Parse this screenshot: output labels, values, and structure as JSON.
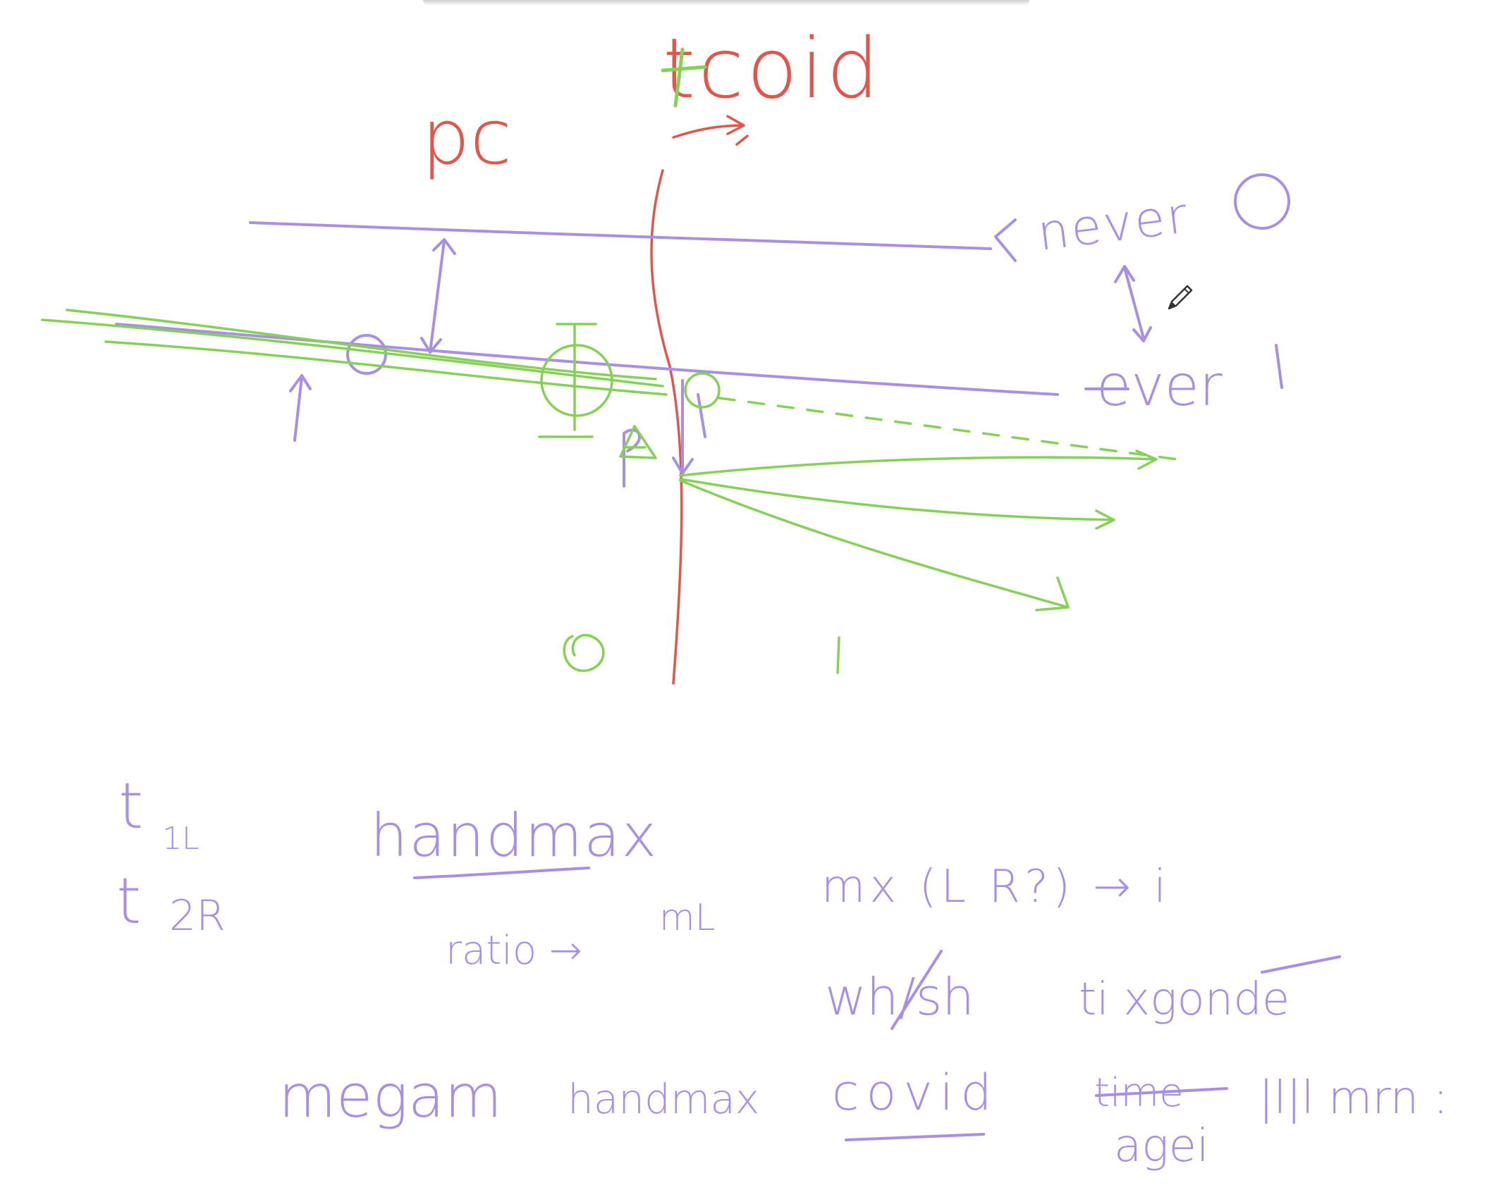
{
  "colors": {
    "red": "#e0564a",
    "green": "#85d156",
    "purple": "#a98ee6"
  },
  "annotations": {
    "top_label": "tcoid",
    "left_label": "pc",
    "never": "never",
    "ever": "ever",
    "ever_struck": "e",
    "circle_symbol": "O",
    "one_symbol": "I",
    "green_zero": "0",
    "green_one": "1"
  },
  "notes": {
    "t_1l": "t",
    "t_1l_sub": "1L",
    "t_2r": "t",
    "t_2r_sub": "2R",
    "handmax": "handmax",
    "ratio": "ratio →",
    "ml": "mL",
    "mx": "mx (L R?) → i",
    "wh_sh": "wh/sh",
    "ti_xgonde": "ti  xgonde",
    "megam": "megam",
    "handmax_small": "handmax",
    "covid": "covid",
    "time_struck": "time",
    "agei": "agei",
    "llmrn": "|l|l mrn :"
  },
  "cursor": {
    "icon": "pencil-cursor-icon"
  }
}
